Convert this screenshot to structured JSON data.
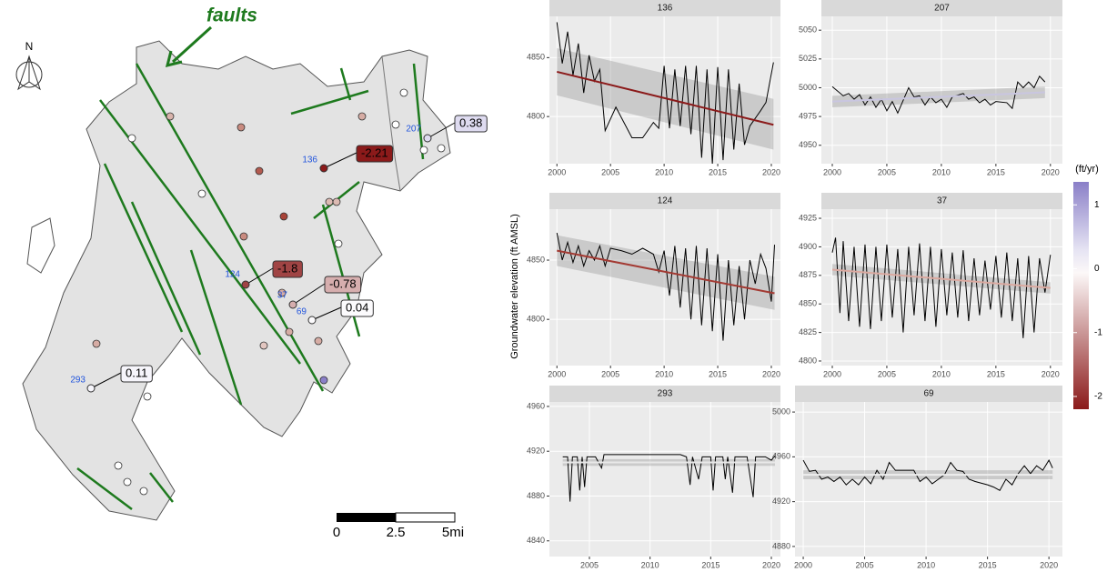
{
  "y_label": "Groundwater elevation (ft AMSL)",
  "chart_data": [
    {
      "type": "line",
      "title": "136",
      "xlim": [
        1999.3,
        2020.85
      ],
      "xticks": [
        2000,
        2005,
        2010,
        2015,
        2020
      ],
      "ylim": [
        4760,
        4885
      ],
      "yticks": [
        4800,
        4850
      ],
      "color": "#000000",
      "x": [
        2000,
        2000.5,
        2001,
        2001.5,
        2002,
        2002.5,
        2003,
        2003.5,
        2004,
        2004.5,
        2005.5,
        2007,
        2008,
        2009,
        2009.5,
        2010,
        2010.5,
        2011,
        2011.5,
        2012,
        2012.5,
        2013,
        2013.5,
        2014,
        2014.5,
        2015,
        2015.5,
        2016,
        2016.5,
        2017,
        2017.5,
        2018,
        2019,
        2019.5,
        2020.2
      ],
      "values": [
        4880,
        4845,
        4872,
        4835,
        4862,
        4820,
        4852,
        4830,
        4840,
        4788,
        4808,
        4782,
        4782,
        4795,
        4790,
        4843,
        4790,
        4840,
        4792,
        4843,
        4785,
        4843,
        4765,
        4840,
        4760,
        4842,
        4763,
        4840,
        4772,
        4828,
        4776,
        4792,
        4805,
        4812,
        4846
      ],
      "trend": {
        "x": [
          2000,
          2020.2
        ],
        "values": [
          4838,
          4793
        ],
        "lower": [
          4818,
          4772
        ],
        "upper": [
          4858,
          4815
        ],
        "color": "#8b1a1a"
      }
    },
    {
      "type": "line",
      "title": "207",
      "xlim": [
        1999,
        2021.1
      ],
      "xticks": [
        2000,
        2005,
        2010,
        2015,
        2020
      ],
      "ylim": [
        4934,
        5062
      ],
      "yticks": [
        4950,
        4975,
        5000,
        5025,
        5050
      ],
      "color": "#000000",
      "x": [
        2000,
        2001,
        2001.5,
        2002,
        2002.5,
        2003,
        2003.5,
        2004,
        2004.5,
        2005,
        2005.5,
        2006,
        2007,
        2007.5,
        2008,
        2008.5,
        2009,
        2009.5,
        2010,
        2010.5,
        2011,
        2012,
        2012.5,
        2013,
        2013.5,
        2014,
        2014.5,
        2015,
        2016,
        2016.5,
        2017,
        2017.5,
        2018,
        2018.5,
        2019,
        2019.5
      ],
      "values": [
        5001,
        4993,
        4995,
        4990,
        4994,
        4985,
        4992,
        4983,
        4990,
        4980,
        4988,
        4978,
        5000,
        4992,
        4993,
        4985,
        4992,
        4987,
        4990,
        4983,
        4992,
        4995,
        4990,
        4992,
        4987,
        4990,
        4985,
        4988,
        4987,
        4982,
        5005,
        5000,
        5005,
        5000,
        5010,
        5005
      ],
      "trend": {
        "x": [
          2000,
          2019.5
        ],
        "values": [
          4988,
          4996
        ],
        "lower": [
          4983,
          4991
        ],
        "upper": [
          4993,
          5001
        ],
        "color": "#c9c6e0"
      }
    },
    {
      "type": "line",
      "title": "124",
      "xlim": [
        1999.3,
        2020.85
      ],
      "xticks": [
        2000,
        2005,
        2010,
        2015,
        2020
      ],
      "ylim": [
        4761,
        4893
      ],
      "yticks": [
        4800,
        4850
      ],
      "color": "#000000",
      "x": [
        2000,
        2000.5,
        2001,
        2001.5,
        2002,
        2002.5,
        2003,
        2003.5,
        2004,
        2004.5,
        2005,
        2006,
        2007,
        2008,
        2009,
        2009.5,
        2010,
        2010.5,
        2011,
        2011.5,
        2012,
        2012.5,
        2013,
        2013.5,
        2014,
        2014.5,
        2015,
        2015.5,
        2016,
        2016.5,
        2017,
        2017.5,
        2018,
        2018.5,
        2019,
        2019.5,
        2020,
        2020.3
      ],
      "values": [
        4873,
        4850,
        4865,
        4848,
        4862,
        4845,
        4858,
        4850,
        4862,
        4845,
        4860,
        4858,
        4855,
        4860,
        4855,
        4840,
        4858,
        4820,
        4862,
        4810,
        4860,
        4800,
        4862,
        4795,
        4860,
        4790,
        4855,
        4782,
        4850,
        4795,
        4845,
        4800,
        4850,
        4830,
        4855,
        4843,
        4815,
        4863
      ],
      "trend": {
        "x": [
          2000,
          2020.3
        ],
        "values": [
          4858,
          4822
        ],
        "lower": [
          4845,
          4808
        ],
        "upper": [
          4871,
          4836
        ],
        "color": "#a33a33"
      }
    },
    {
      "type": "line",
      "title": "37",
      "xlim": [
        1999,
        2021.1
      ],
      "xticks": [
        2000,
        2005,
        2010,
        2015,
        2020
      ],
      "ylim": [
        4796,
        4933
      ],
      "yticks": [
        4800,
        4825,
        4850,
        4875,
        4900,
        4925
      ],
      "color": "#000000",
      "x": [
        2000,
        2000.3,
        2000.7,
        2001,
        2001.5,
        2002,
        2002.5,
        2003,
        2003.5,
        2004,
        2004.5,
        2005,
        2005.5,
        2006,
        2006.5,
        2007,
        2007.5,
        2008,
        2008.5,
        2009,
        2009.5,
        2010,
        2010.5,
        2011,
        2011.5,
        2012,
        2012.5,
        2013,
        2013.5,
        2014,
        2014.5,
        2015,
        2015.5,
        2016,
        2016.5,
        2017,
        2017.5,
        2018,
        2018.5,
        2019,
        2019.5,
        2020
      ],
      "values": [
        4895,
        4908,
        4842,
        4905,
        4835,
        4900,
        4830,
        4902,
        4828,
        4900,
        4835,
        4902,
        4838,
        4898,
        4825,
        4900,
        4840,
        4903,
        4835,
        4900,
        4830,
        4898,
        4840,
        4895,
        4838,
        4897,
        4835,
        4890,
        4840,
        4888,
        4845,
        4892,
        4838,
        4895,
        4835,
        4890,
        4820,
        4892,
        4825,
        4890,
        4860,
        4893
      ],
      "trend": {
        "x": [
          2000,
          2020
        ],
        "values": [
          4880,
          4864
        ],
        "lower": [
          4875,
          4859
        ],
        "upper": [
          4885,
          4869
        ],
        "color": "#dba9a0"
      }
    },
    {
      "type": "line",
      "title": "293",
      "xlim": [
        2001.7,
        2020.75
      ],
      "xticks": [
        2005,
        2010,
        2015,
        2020
      ],
      "ylim": [
        4826,
        4964
      ],
      "yticks": [
        4840,
        4880,
        4920,
        4960
      ],
      "color": "#000000",
      "x": [
        2002.8,
        2003.2,
        2003.4,
        2003.6,
        2004,
        2004.2,
        2004.4,
        2004.6,
        2004.8,
        2005.5,
        2006,
        2006.2,
        2010,
        2012.5,
        2013,
        2013.3,
        2013.5,
        2014,
        2014.3,
        2015,
        2015.2,
        2015.4,
        2016,
        2016.2,
        2016.4,
        2016.8,
        2017,
        2018,
        2018.5,
        2018.7,
        2019.5,
        2020,
        2020.3
      ],
      "values": [
        4915,
        4915,
        4875,
        4915,
        4915,
        4885,
        4915,
        4888,
        4915,
        4915,
        4905,
        4917,
        4917,
        4917,
        4915,
        4890,
        4915,
        4895,
        4915,
        4915,
        4885,
        4915,
        4915,
        4895,
        4915,
        4883,
        4915,
        4915,
        4879,
        4915,
        4915,
        4912,
        4916
      ],
      "trend": {
        "x": [
          2002.8,
          2020.3
        ],
        "values": [
          4910,
          4910
        ],
        "lower": [
          4907,
          4907
        ],
        "upper": [
          4913,
          4913
        ],
        "color": "#e8e8e8"
      }
    },
    {
      "type": "line",
      "title": "69",
      "xlim": [
        1999.33,
        2021.1
      ],
      "xticks": [
        2000,
        2005,
        2010,
        2015,
        2020
      ],
      "ylim": [
        4871,
        5009
      ],
      "yticks": [
        4880,
        4920,
        4960,
        5000
      ],
      "color": "#000000",
      "x": [
        2000,
        2000.5,
        2001,
        2001.5,
        2002,
        2002.5,
        2003,
        2003.5,
        2004,
        2004.5,
        2005,
        2005.5,
        2006,
        2006.5,
        2007,
        2007.5,
        2008,
        2009,
        2009.5,
        2010,
        2010.5,
        2011,
        2011.5,
        2012,
        2012.5,
        2013,
        2013.5,
        2014,
        2015,
        2015.5,
        2016,
        2016.5,
        2017,
        2017.5,
        2018,
        2018.5,
        2019,
        2019.5,
        2020,
        2020.3
      ],
      "values": [
        4957,
        4947,
        4948,
        4940,
        4942,
        4938,
        4942,
        4935,
        4940,
        4935,
        4942,
        4936,
        4948,
        4940,
        4955,
        4948,
        4948,
        4948,
        4938,
        4942,
        4936,
        4940,
        4944,
        4955,
        4948,
        4947,
        4940,
        4938,
        4935,
        4933,
        4930,
        4940,
        4935,
        4945,
        4952,
        4945,
        4952,
        4948,
        4957,
        4950
      ],
      "trend": {
        "x": [
          2000,
          2020.3
        ],
        "values": [
          4944,
          4944
        ],
        "lower": [
          4940,
          4940
        ],
        "upper": [
          4948,
          4948
        ],
        "color": "#eeeeee"
      }
    }
  ],
  "colorbar": {
    "title": "(ft/yr)",
    "lim": [
      -2.2,
      1.36
    ],
    "ticks": [
      1,
      0,
      -1,
      -2
    ],
    "colors": [
      "#8b1a1a",
      "#ffffff",
      "#8a7fc8"
    ]
  },
  "map": {
    "annotation": "faults",
    "north": "N",
    "scale_labels": [
      "0",
      "2.5",
      "5mi"
    ],
    "wells": [
      {
        "id": "207",
        "trend": 0.38,
        "label": "0.38"
      },
      {
        "id": "136",
        "trend": -2.21,
        "label": "-2.21"
      },
      {
        "id": "124",
        "trend": -1.8,
        "label": "-1.8"
      },
      {
        "id": "37",
        "trend": -0.78,
        "label": "-0.78"
      },
      {
        "id": "69",
        "trend": 0.04,
        "label": "0.04"
      },
      {
        "id": "293",
        "trend": 0.11,
        "label": "0.11"
      }
    ]
  }
}
